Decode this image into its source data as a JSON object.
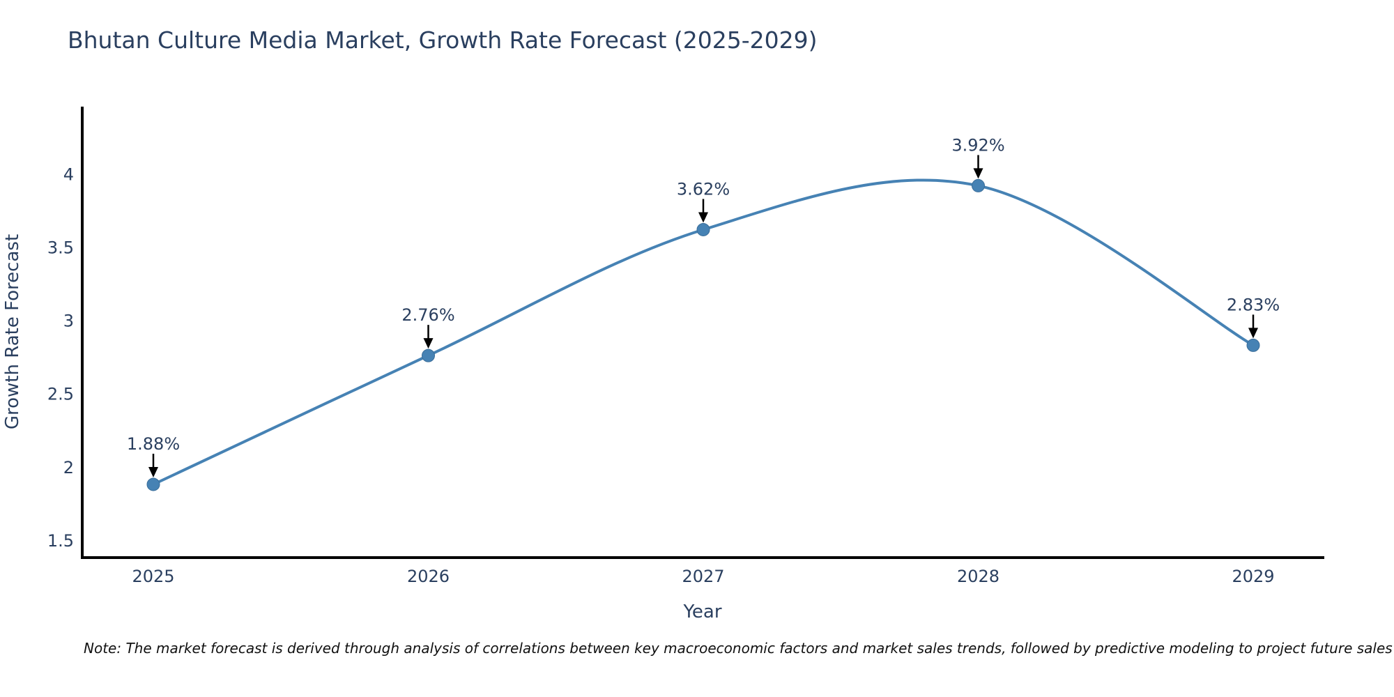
{
  "title": "Bhutan Culture Media Market, Growth Rate Forecast (2025-2029)",
  "note": "Note: The market forecast is derived through analysis of correlations between key macroeconomic factors and market sales trends, followed by predictive modeling to project future sales",
  "chart_data": {
    "type": "line",
    "line_shape": "spline",
    "title": "Bhutan Culture Media Market, Growth Rate Forecast (2025-2029)",
    "xlabel": "Year",
    "ylabel": "Growth Rate Forecast",
    "categories": [
      "2025",
      "2026",
      "2027",
      "2028",
      "2029"
    ],
    "values": [
      1.88,
      2.76,
      3.62,
      3.92,
      2.83
    ],
    "point_labels": [
      "1.88%",
      "2.76%",
      "3.62%",
      "3.92%",
      "2.83%"
    ],
    "yticks": [
      1.5,
      2,
      2.5,
      3,
      3.5,
      4
    ],
    "ytick_labels": [
      "1.5",
      "2",
      "2.5",
      "3",
      "3.5",
      "4"
    ],
    "ylim": [
      1.38,
      4.46
    ],
    "grid": false,
    "legend": false,
    "markers": true,
    "colors": {
      "line": "#4682B4",
      "marker_fill": "#4682B4",
      "marker_edge": "#3a6d99",
      "axis": "#000000",
      "text": "#2a3f5f",
      "annotation_arrow": "#000000",
      "note_text": "#111111",
      "background": "#ffffff"
    }
  }
}
